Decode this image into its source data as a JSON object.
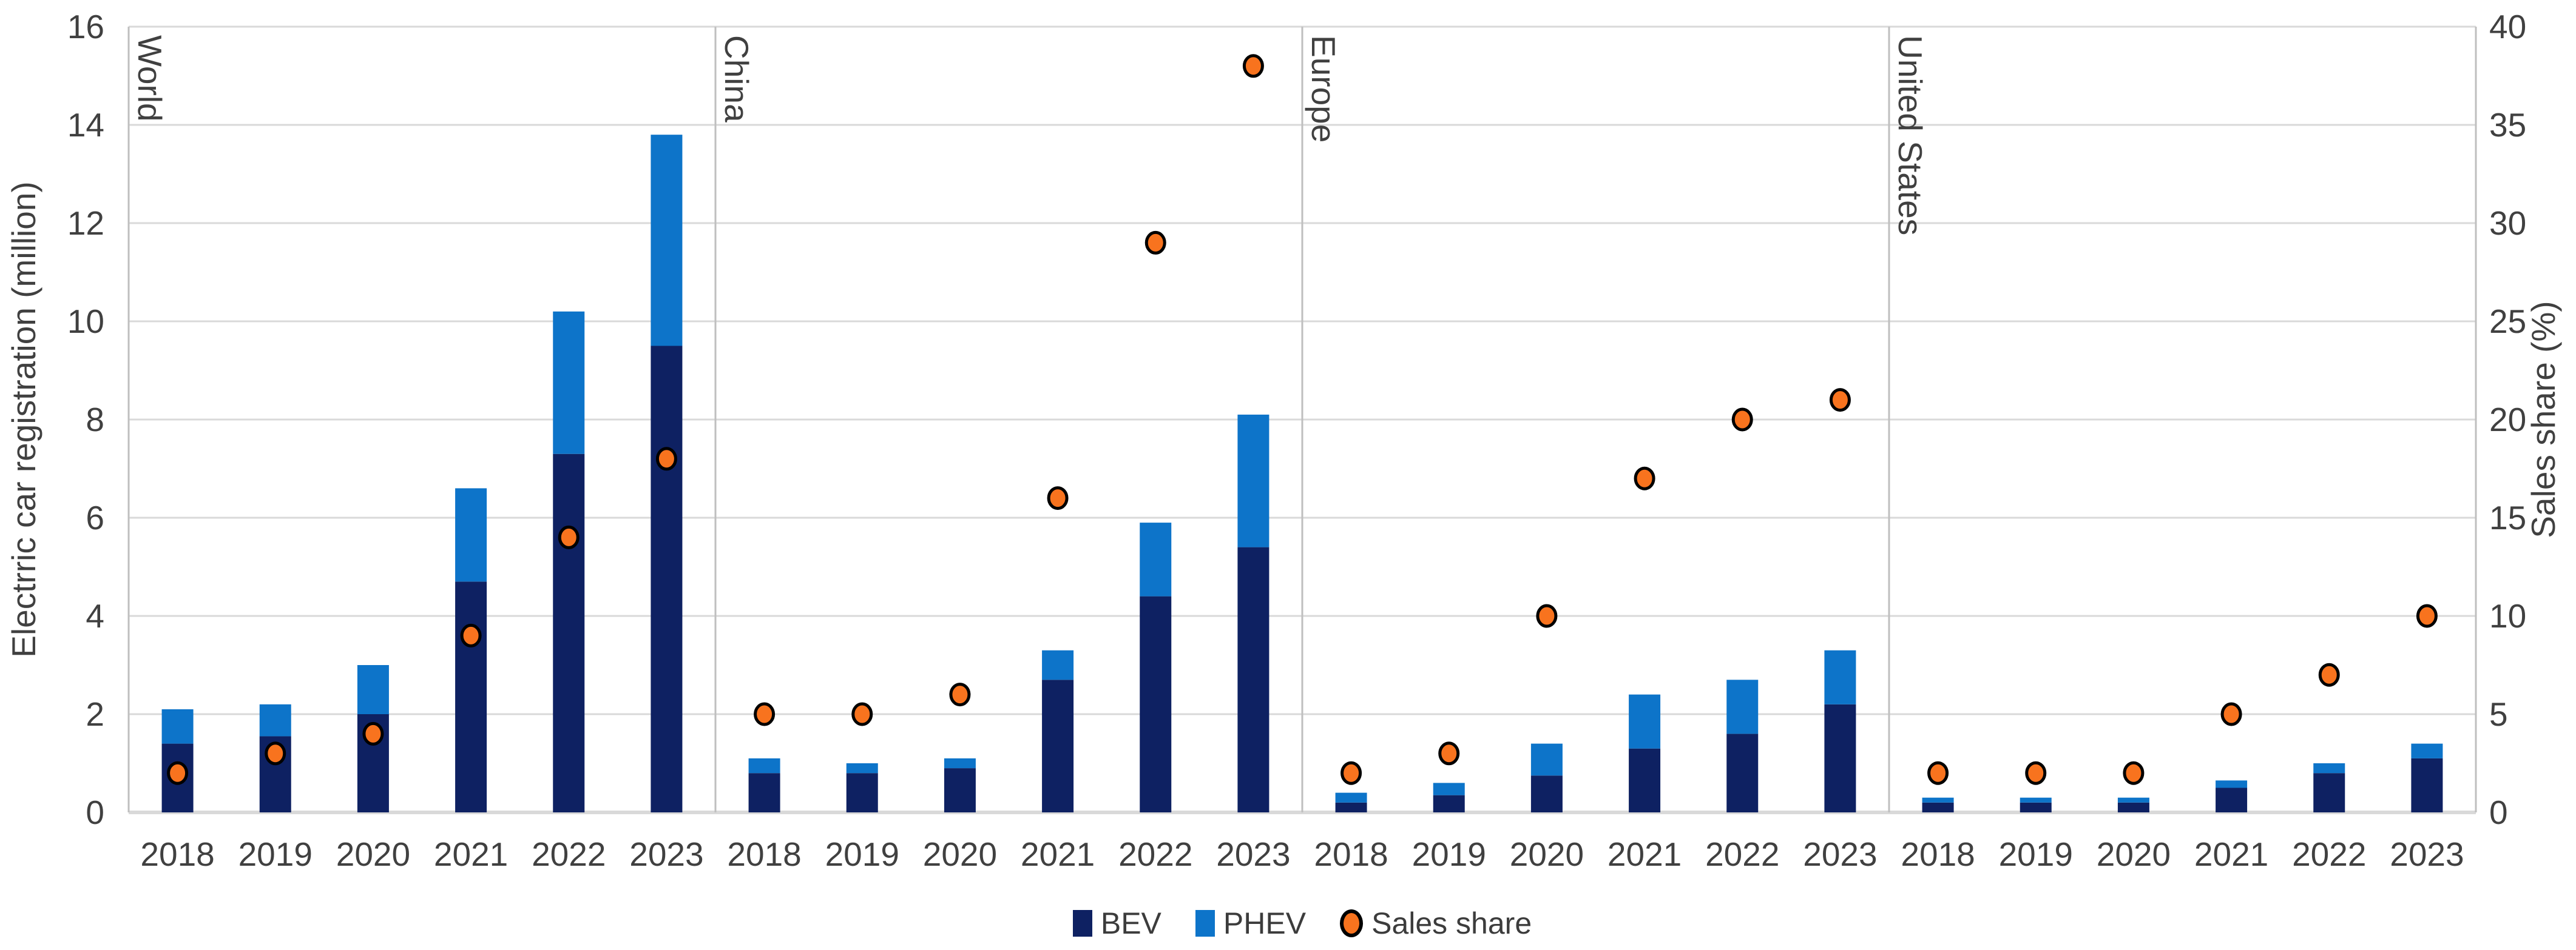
{
  "chart_data": {
    "type": "bar",
    "subtype": "stacked-bar-with-scatter-by-panel",
    "title": "",
    "ylabel_left": "Electrric car registration (million)",
    "ylabel_right": "Sales share (%)",
    "left_axis": {
      "min": 0,
      "max": 16,
      "step": 2
    },
    "right_axis": {
      "min": 0,
      "max": 40,
      "step": 5
    },
    "grid": true,
    "legend_position": "bottom-center",
    "categories": [
      "2018",
      "2019",
      "2020",
      "2021",
      "2022",
      "2023"
    ],
    "panels": [
      {
        "name": "World",
        "series": [
          {
            "name": "BEV",
            "values": [
              1.4,
              1.55,
              2.0,
              4.7,
              7.3,
              9.5
            ]
          },
          {
            "name": "PHEV",
            "values": [
              0.7,
              0.65,
              1.0,
              1.9,
              2.9,
              4.3
            ]
          }
        ],
        "sales_share_pct": [
          2,
          3,
          4,
          9,
          14,
          18
        ]
      },
      {
        "name": "China",
        "series": [
          {
            "name": "BEV",
            "values": [
              0.8,
              0.8,
              0.9,
              2.7,
              4.4,
              5.4
            ]
          },
          {
            "name": "PHEV",
            "values": [
              0.3,
              0.2,
              0.2,
              0.6,
              1.5,
              2.7
            ]
          }
        ],
        "sales_share_pct": [
          5,
          5,
          6,
          16,
          29,
          38
        ]
      },
      {
        "name": "Europe",
        "series": [
          {
            "name": "BEV",
            "values": [
              0.2,
              0.35,
              0.75,
              1.3,
              1.6,
              2.2
            ]
          },
          {
            "name": "PHEV",
            "values": [
              0.2,
              0.25,
              0.65,
              1.1,
              1.1,
              1.1
            ]
          }
        ],
        "sales_share_pct": [
          2,
          3,
          10,
          17,
          20,
          21
        ]
      },
      {
        "name": "United States",
        "series": [
          {
            "name": "BEV",
            "values": [
              0.2,
              0.2,
              0.2,
              0.5,
              0.8,
              1.1
            ]
          },
          {
            "name": "PHEV",
            "values": [
              0.1,
              0.1,
              0.1,
              0.15,
              0.2,
              0.3
            ]
          }
        ],
        "sales_share_pct": [
          2,
          2,
          2,
          5,
          7,
          10
        ]
      }
    ],
    "legend": [
      {
        "label": "BEV",
        "marker": "square",
        "color": "#0e2162"
      },
      {
        "label": "PHEV",
        "marker": "square",
        "color": "#0d74c9"
      },
      {
        "label": "Sales share",
        "marker": "circle",
        "color": "#f8731e",
        "outline": "#000000"
      }
    ],
    "colors": {
      "bev": "#0e2162",
      "phev": "#0d74c9",
      "sales_share": "#f8731e",
      "point_outline": "#000000",
      "grid": "#d9d9d9",
      "separator": "#bfbfbf",
      "baseline": "#d9d9d9",
      "text": "#404040",
      "background": "#ffffff"
    }
  }
}
